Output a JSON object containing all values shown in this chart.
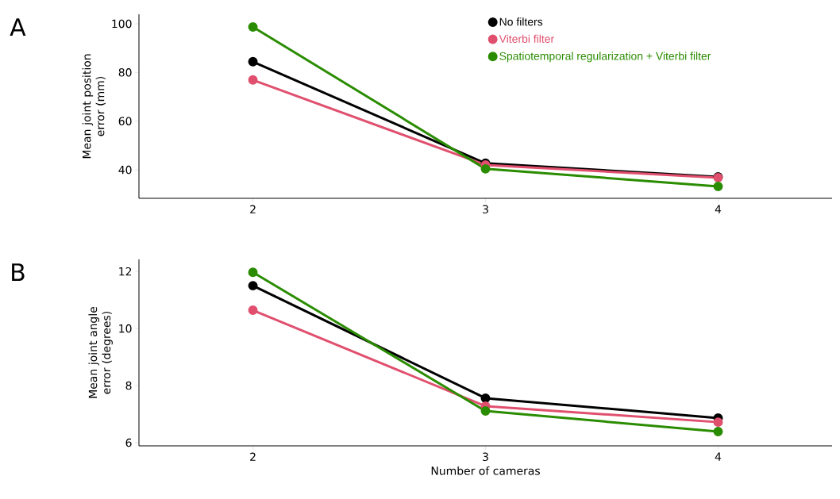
{
  "chart_data": [
    {
      "type": "line",
      "ylabel": "Mean joint position error (mm)",
      "x": [
        2,
        3,
        4
      ],
      "xlim": [
        1.51,
        4.49
      ],
      "xticks": [
        2,
        3,
        4
      ],
      "ylim": [
        28.3,
        103.9
      ],
      "yticks": [
        40,
        60,
        80,
        100
      ],
      "marker": "circle",
      "line_style": "solid",
      "grid": false,
      "legend": "top right",
      "annotations": [
        "A"
      ],
      "series": [
        {
          "name": "No filters",
          "color": "#000000",
          "values": [
            84.4,
            42.7,
            37.1
          ]
        },
        {
          "name": "Viterbi filter",
          "color": "#e0506e",
          "values": [
            76.9,
            42.0,
            36.8
          ]
        },
        {
          "name": "Spatiotemporal regularization + Viterbi filter",
          "color": "#2a8c00",
          "values": [
            98.7,
            40.4,
            33.2
          ]
        }
      ]
    },
    {
      "type": "line",
      "ylabel": "Mean joint angle error (degrees)",
      "xlabel": "Number of cameras",
      "x": [
        2,
        3,
        4
      ],
      "xlim": [
        1.51,
        4.49
      ],
      "xticks": [
        2,
        3,
        4
      ],
      "ylim": [
        5.89,
        12.42
      ],
      "yticks": [
        6,
        8,
        10,
        12
      ],
      "marker": "circle",
      "line_style": "solid",
      "grid": false,
      "annotations": [
        "B"
      ],
      "series": [
        {
          "color": "#000000",
          "values": [
            11.5,
            7.56,
            6.86
          ]
        },
        {
          "color": "#e0506e",
          "values": [
            10.64,
            7.28,
            6.72
          ]
        },
        {
          "color": "#2a8c00",
          "values": [
            11.97,
            7.11,
            6.39
          ]
        }
      ]
    }
  ]
}
